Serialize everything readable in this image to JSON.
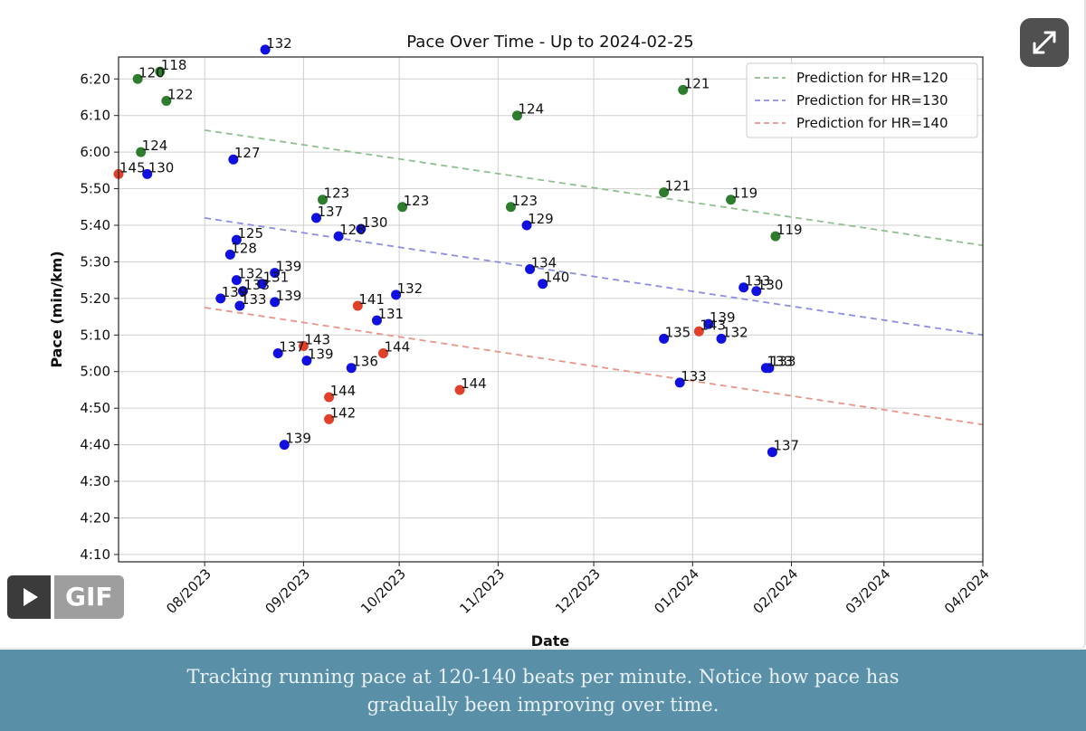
{
  "chart_data": {
    "type": "scatter",
    "title": "Pace Over Time - Up to 2024-02-25",
    "xlabel": "Date",
    "ylabel": "Pace (min/km)",
    "x_ticks": [
      "2023-08-01",
      "2023-09-01",
      "2023-10-01",
      "2023-11-01",
      "2023-12-01",
      "2024-01-01",
      "2024-02-01",
      "2024-03-01",
      "2024-04-01"
    ],
    "x_tick_labels": [
      "08/2023",
      "09/2023",
      "10/2023",
      "11/2023",
      "12/2023",
      "01/2024",
      "02/2024",
      "03/2024",
      "04/2024"
    ],
    "y_ticks": [
      250,
      260,
      270,
      280,
      290,
      300,
      310,
      320,
      330,
      340,
      350,
      360,
      370,
      380
    ],
    "y_tick_labels": [
      "4:10",
      "4:20",
      "4:30",
      "4:40",
      "4:50",
      "5:00",
      "5:10",
      "5:20",
      "5:30",
      "5:40",
      "5:50",
      "6:00",
      "6:10",
      "6:20"
    ],
    "xlim": [
      "2023-07-05",
      "2024-04-01"
    ],
    "ylim": [
      248,
      386
    ],
    "grid": true,
    "legend_position": "top-right",
    "legend_entries": [
      {
        "label": "Prediction for HR=120",
        "color": "#8fbf8f"
      },
      {
        "label": "Prediction for HR=130",
        "color": "#8e8ee0"
      },
      {
        "label": "Prediction for HR=140",
        "color": "#e8958a"
      }
    ],
    "prediction_lines": [
      {
        "hr": 120,
        "color": "#8fbf8f",
        "x": [
          "2023-08-01",
          "2024-04-01"
        ],
        "y": [
          366,
          334.5
        ]
      },
      {
        "hr": 130,
        "color": "#8e8ee0",
        "x": [
          "2023-08-01",
          "2024-04-01"
        ],
        "y": [
          342,
          310
        ]
      },
      {
        "hr": 140,
        "color": "#e8958a",
        "x": [
          "2023-08-01",
          "2024-04-01"
        ],
        "y": [
          317.5,
          285.5
        ]
      }
    ],
    "points": [
      {
        "date": "2023-07-05",
        "pace": 354,
        "hr": 145,
        "color": "#e0402a"
      },
      {
        "date": "2023-07-11",
        "pace": 380,
        "hr": 120,
        "color": "#2e7d2e"
      },
      {
        "date": "2023-07-18",
        "pace": 382,
        "hr": 118,
        "color": "#2e7d2e"
      },
      {
        "date": "2023-07-20",
        "pace": 374,
        "hr": 122,
        "color": "#2e7d2e"
      },
      {
        "date": "2023-07-12",
        "pace": 360,
        "hr": 124,
        "color": "#2e7d2e"
      },
      {
        "date": "2023-07-14",
        "pace": 354,
        "hr": 130,
        "color": "#1010e0"
      },
      {
        "date": "2023-08-10",
        "pace": 358,
        "hr": 127,
        "color": "#1010e0"
      },
      {
        "date": "2023-08-11",
        "pace": 336,
        "hr": 125,
        "color": "#1010e0"
      },
      {
        "date": "2023-08-09",
        "pace": 332,
        "hr": 128,
        "color": "#1010e0"
      },
      {
        "date": "2023-08-11",
        "pace": 325,
        "hr": 132,
        "color": "#1010e0"
      },
      {
        "date": "2023-08-13",
        "pace": 322,
        "hr": 133,
        "color": "#1010e0"
      },
      {
        "date": "2023-08-06",
        "pace": 320,
        "hr": 139,
        "color": "#1010e0"
      },
      {
        "date": "2023-08-12",
        "pace": 318,
        "hr": 133,
        "color": "#1010e0"
      },
      {
        "date": "2023-08-19",
        "pace": 324,
        "hr": 131,
        "color": "#1010e0"
      },
      {
        "date": "2023-08-20",
        "pace": 388,
        "hr": 132,
        "color": "#1010e0"
      },
      {
        "date": "2023-08-23",
        "pace": 327,
        "hr": 139,
        "color": "#1010e0"
      },
      {
        "date": "2023-08-23",
        "pace": 319,
        "hr": 139,
        "color": "#1010e0"
      },
      {
        "date": "2023-08-24",
        "pace": 305,
        "hr": 137,
        "color": "#1010e0"
      },
      {
        "date": "2023-08-26",
        "pace": 280,
        "hr": 139,
        "color": "#1010e0"
      },
      {
        "date": "2023-09-02",
        "pace": 303,
        "hr": 139,
        "color": "#1010e0"
      },
      {
        "date": "2023-09-01",
        "pace": 307,
        "hr": 143,
        "color": "#e0402a"
      },
      {
        "date": "2023-09-05",
        "pace": 342,
        "hr": 137,
        "color": "#1010e0"
      },
      {
        "date": "2023-09-07",
        "pace": 347,
        "hr": 123,
        "color": "#2e7d2e"
      },
      {
        "date": "2023-09-09",
        "pace": 293,
        "hr": 144,
        "color": "#e0402a"
      },
      {
        "date": "2023-09-09",
        "pace": 287,
        "hr": 142,
        "color": "#e0402a"
      },
      {
        "date": "2023-09-12",
        "pace": 337,
        "hr": 128,
        "color": "#1010e0"
      },
      {
        "date": "2023-09-19",
        "pace": 339,
        "hr": 130,
        "color": "#1010e0"
      },
      {
        "date": "2023-09-16",
        "pace": 301,
        "hr": 136,
        "color": "#1010e0"
      },
      {
        "date": "2023-09-18",
        "pace": 318,
        "hr": 141,
        "color": "#e0402a"
      },
      {
        "date": "2023-09-24",
        "pace": 314,
        "hr": 131,
        "color": "#1010e0"
      },
      {
        "date": "2023-09-26",
        "pace": 305,
        "hr": 144,
        "color": "#e0402a"
      },
      {
        "date": "2023-09-30",
        "pace": 321,
        "hr": 132,
        "color": "#1010e0"
      },
      {
        "date": "2023-10-02",
        "pace": 345,
        "hr": 123,
        "color": "#2e7d2e"
      },
      {
        "date": "2023-10-20",
        "pace": 295,
        "hr": 144,
        "color": "#e0402a"
      },
      {
        "date": "2023-11-05",
        "pace": 345,
        "hr": 123,
        "color": "#2e7d2e"
      },
      {
        "date": "2023-11-07",
        "pace": 370,
        "hr": 124,
        "color": "#2e7d2e"
      },
      {
        "date": "2023-11-10",
        "pace": 340,
        "hr": 129,
        "color": "#1010e0"
      },
      {
        "date": "2023-11-11",
        "pace": 328,
        "hr": 134,
        "color": "#1010e0"
      },
      {
        "date": "2023-11-15",
        "pace": 324,
        "hr": 140,
        "color": "#1010e0"
      },
      {
        "date": "2023-12-23",
        "pace": 349,
        "hr": 121,
        "color": "#2e7d2e"
      },
      {
        "date": "2023-12-23",
        "pace": 309,
        "hr": 135,
        "color": "#1010e0"
      },
      {
        "date": "2023-12-29",
        "pace": 377,
        "hr": 121,
        "color": "#2e7d2e"
      },
      {
        "date": "2023-12-28",
        "pace": 297,
        "hr": 133,
        "color": "#1010e0"
      },
      {
        "date": "2024-01-03",
        "pace": 311,
        "hr": 143,
        "color": "#e0402a"
      },
      {
        "date": "2024-01-06",
        "pace": 313,
        "hr": 139,
        "color": "#1010e0"
      },
      {
        "date": "2024-01-10",
        "pace": 309,
        "hr": 132,
        "color": "#1010e0"
      },
      {
        "date": "2024-01-13",
        "pace": 347,
        "hr": 119,
        "color": "#2e7d2e"
      },
      {
        "date": "2024-01-17",
        "pace": 323,
        "hr": 133,
        "color": "#1010e0"
      },
      {
        "date": "2024-01-21",
        "pace": 322,
        "hr": 130,
        "color": "#1010e0"
      },
      {
        "date": "2024-01-24",
        "pace": 301,
        "hr": 133,
        "color": "#1010e0"
      },
      {
        "date": "2024-01-25",
        "pace": 301,
        "hr": 133,
        "color": "#1010e0"
      },
      {
        "date": "2024-01-26",
        "pace": 278,
        "hr": 137,
        "color": "#1010e0"
      },
      {
        "date": "2024-01-27",
        "pace": 337,
        "hr": 119,
        "color": "#2e7d2e"
      }
    ]
  },
  "controls": {
    "gif_label": "GIF",
    "expand_icon": "expand-arrows-icon",
    "play_icon": "play-icon"
  },
  "caption": {
    "line1": "Tracking running pace at 120-140 beats per minute. Notice how pace has",
    "line2": "gradually been improving over time."
  }
}
